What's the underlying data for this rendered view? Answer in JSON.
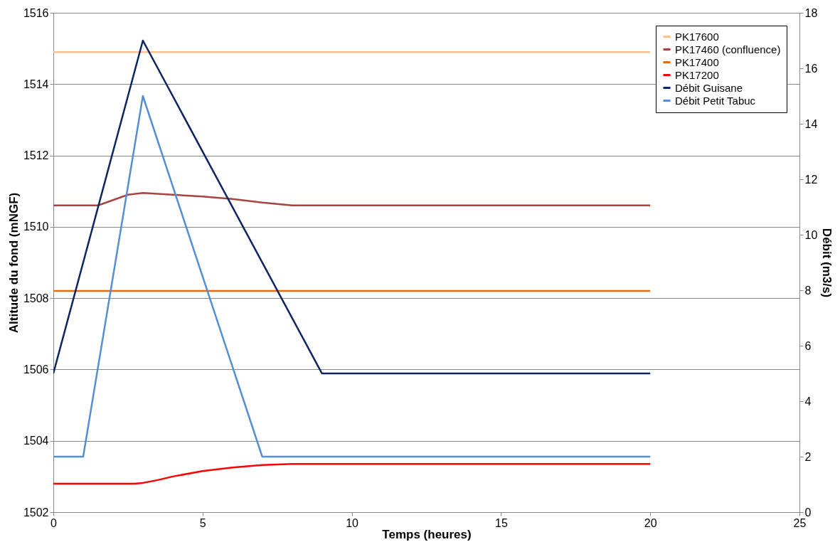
{
  "chart_data": {
    "type": "line",
    "xlabel": "Temps (heures)",
    "ylabel": "Altitude du fond (mNGF)",
    "y2label": "Débit (m3/s)",
    "xlim": [
      0,
      25
    ],
    "xticks": [
      0,
      5,
      10,
      15,
      20,
      25
    ],
    "ylim": [
      1502,
      1516
    ],
    "yticks": [
      1502,
      1504,
      1506,
      1508,
      1510,
      1512,
      1514,
      1516
    ],
    "y2lim": [
      0,
      18
    ],
    "y2ticks": [
      0,
      2,
      4,
      6,
      8,
      10,
      12,
      14,
      16,
      18
    ],
    "grid": "y",
    "legend": "top right",
    "marker": "none",
    "line_style": "solid",
    "series": [
      {
        "name": "PK17600",
        "color": "#fac090",
        "x": [
          0,
          20
        ],
        "values": [
          1514.9,
          1514.9
        ]
      },
      {
        "name": "PK17460 (confluence)",
        "color": "#a84343",
        "x": [
          0,
          1.5,
          2,
          2.5,
          3,
          4,
          5,
          6,
          7,
          8,
          20
        ],
        "values": [
          1510.6,
          1510.6,
          1510.75,
          1510.9,
          1510.95,
          1510.9,
          1510.85,
          1510.78,
          1510.68,
          1510.6,
          1510.6
        ]
      },
      {
        "name": "PK17400",
        "color": "#e46c0a",
        "x": [
          0,
          20
        ],
        "values": [
          1508.2,
          1508.2
        ]
      },
      {
        "name": "PK17200",
        "color": "#ff0000",
        "x": [
          0,
          2.7,
          3,
          3.5,
          4,
          5,
          6,
          7,
          8,
          20
        ],
        "values": [
          1502.8,
          1502.8,
          1502.82,
          1502.9,
          1503.0,
          1503.15,
          1503.25,
          1503.32,
          1503.35,
          1503.35
        ]
      },
      {
        "name": "Débit Guisane",
        "color": "#0d2560",
        "axis": "y2",
        "x": [
          0,
          3,
          9,
          20
        ],
        "values": [
          5,
          17,
          5,
          5
        ]
      },
      {
        "name": "Débit Petit Tabuc",
        "color": "#558ed5",
        "axis": "y2",
        "x": [
          0,
          1,
          3,
          7,
          20
        ],
        "values": [
          2,
          2,
          15,
          2,
          2
        ]
      }
    ]
  }
}
